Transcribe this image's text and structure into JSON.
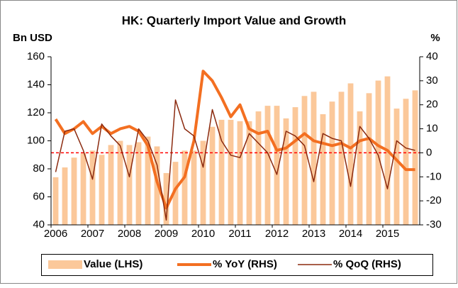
{
  "chart_data": {
    "type": "bar_line",
    "title": "HK: Quarterly Import Value and Growth",
    "y_axis_label": "Bn USD",
    "y2_axis_label": "%",
    "categories": [
      "2006",
      null,
      null,
      null,
      "2007",
      null,
      null,
      null,
      "2008",
      null,
      null,
      null,
      "2009",
      null,
      null,
      null,
      "2010",
      null,
      null,
      null,
      "2011",
      null,
      null,
      null,
      "2012",
      null,
      null,
      null,
      "2013",
      null,
      null,
      null,
      "2014",
      null,
      null,
      null,
      "2015",
      null,
      null,
      null
    ],
    "series": [
      {
        "name": "Value (LHS)",
        "type": "bar",
        "color": "#fbc89a",
        "values": [
          74,
          81,
          88,
          91,
          93,
          90,
          97,
          100,
          97,
          99,
          103,
          96,
          77,
          85,
          93,
          93,
          100,
          110,
          115,
          115,
          114,
          114,
          121,
          125,
          125,
          116,
          124,
          132,
          135,
          119,
          128,
          135,
          141,
          121,
          134,
          143,
          146,
          123,
          130,
          136
        ]
      },
      {
        "name": "% YoY (RHS)",
        "type": "line",
        "axis": "y2",
        "color": "#f36f21",
        "line_width": 4,
        "values": [
          14,
          8,
          10,
          13,
          8,
          11,
          8,
          10,
          11,
          9,
          3,
          -12,
          -23,
          -15,
          -10,
          5,
          34,
          30,
          23,
          15,
          20,
          10,
          8,
          9,
          1,
          2,
          5,
          8,
          5,
          4,
          3,
          4,
          2,
          5,
          6,
          3,
          1,
          -3,
          -7,
          -7
        ]
      },
      {
        "name": "% QoQ (RHS)",
        "type": "line",
        "axis": "y2",
        "color": "#8b2a0f",
        "line_width": 1.5,
        "values": [
          -8,
          9,
          10,
          1,
          -11,
          12,
          7,
          3,
          -10,
          10,
          5,
          -5,
          -28,
          22,
          10,
          7,
          -6,
          18,
          5,
          -1,
          -2,
          8,
          4,
          0,
          -9,
          9,
          7,
          3,
          -12,
          8,
          6,
          5,
          -14,
          11,
          6,
          -1,
          -15,
          5,
          2,
          1
        ]
      }
    ],
    "ylim": [
      40,
      160
    ],
    "yticks": [
      40,
      60,
      80,
      100,
      120,
      140,
      160
    ],
    "y2lim": [
      -30,
      40
    ],
    "y2ticks": [
      -30,
      -20,
      -10,
      0,
      10,
      20,
      30,
      40
    ],
    "reference_line": {
      "axis": "y2",
      "value": 0,
      "color": "#ff0000"
    },
    "legend": "bottom"
  }
}
